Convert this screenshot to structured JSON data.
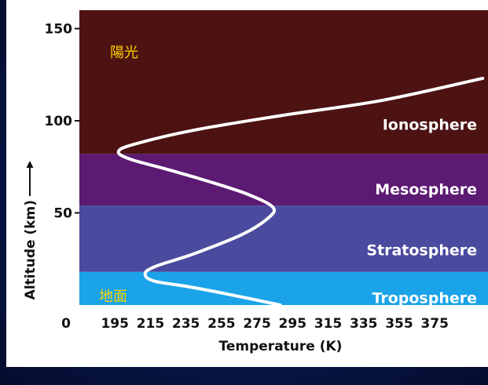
{
  "chart_data": {
    "type": "line",
    "xlabel": "Temperature (K)",
    "ylabel": "Altitude (km)",
    "xlim": [
      175,
      405
    ],
    "ylim": [
      0,
      160
    ],
    "x_ticks": [
      "0",
      "195",
      "215",
      "235",
      "255",
      "275",
      "295",
      "315",
      "335",
      "355",
      "375"
    ],
    "y_ticks": [
      "150",
      "100",
      "50"
    ],
    "grid": false,
    "series": [
      {
        "values": [
          {
            "x": 288,
            "y": 0
          },
          {
            "x": 258,
            "y": 6
          },
          {
            "x": 236,
            "y": 10
          },
          {
            "x": 217,
            "y": 13
          },
          {
            "x": 212,
            "y": 17
          },
          {
            "x": 218,
            "y": 21
          },
          {
            "x": 240,
            "y": 28
          },
          {
            "x": 266,
            "y": 38
          },
          {
            "x": 281,
            "y": 47
          },
          {
            "x": 284,
            "y": 53
          },
          {
            "x": 270,
            "y": 60
          },
          {
            "x": 248,
            "y": 67
          },
          {
            "x": 223,
            "y": 74
          },
          {
            "x": 204,
            "y": 79
          },
          {
            "x": 197,
            "y": 83
          },
          {
            "x": 205,
            "y": 87
          },
          {
            "x": 240,
            "y": 95
          },
          {
            "x": 290,
            "y": 103
          },
          {
            "x": 345,
            "y": 111
          },
          {
            "x": 402,
            "y": 123
          }
        ]
      }
    ],
    "layers": [
      {
        "name": "Troposphere",
        "from_km": 0,
        "to_km": 18,
        "color": "#1aa3e8"
      },
      {
        "name": "Stratosphere",
        "from_km": 18,
        "to_km": 54,
        "color": "#4a4a9e"
      },
      {
        "name": "Mesosphere",
        "from_km": 54,
        "to_km": 82,
        "color": "#5c1a73"
      },
      {
        "name": "Ionosphere",
        "from_km": 82,
        "to_km": 160,
        "color": "#4d1212"
      }
    ],
    "annotations": {
      "top": "陽光",
      "bottom": "地面"
    },
    "line_color": "#ffffff"
  }
}
